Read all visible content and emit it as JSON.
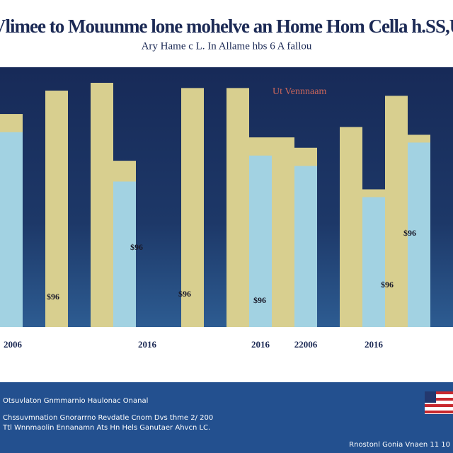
{
  "chart_data": {
    "type": "bar",
    "title": "lldan Vlimee to Mouunme lone mohelve an Home Hom Cella h.SS,U.S,Ca",
    "subtitle": "Ary Hame c L. In Allame hbs 6 A fallou",
    "legend_text": "Ut Vennnaam",
    "categories": [
      "2006",
      null,
      null,
      null,
      null,
      null,
      "2016",
      null,
      null,
      null,
      null,
      "2016",
      null,
      "22006",
      null,
      null,
      "2016",
      null,
      null,
      null
    ],
    "series": [
      {
        "color": "#d8cf8f",
        "values": [
          82,
          null,
          91,
          null,
          94,
          64,
          null,
          null,
          92,
          null,
          92,
          73,
          73,
          69,
          null,
          77,
          53,
          89,
          74,
          null
        ]
      },
      {
        "color": "#a2d2e2",
        "values": [
          75,
          null,
          null,
          null,
          null,
          56,
          null,
          null,
          null,
          null,
          null,
          66,
          null,
          62,
          null,
          null,
          50,
          null,
          71,
          null
        ]
      }
    ],
    "ylim": [
      0,
      100
    ],
    "annotations": [
      "$96",
      "$96",
      "$96",
      "$96",
      "$96",
      "$96"
    ],
    "footer": {
      "lines": [
        "Otsuvlaton  Gnmmarnio  Haulonac  Onanal",
        "Chssuvmnation  Gnorarrno  Revdatle Cnom Dvs thme  2/ 200",
        "Ttl  Wnnmaolin  Ennanamn  Ats  Hn Hels Ganutaer  Ahvcn  LC."
      ],
      "source": "Rnostonl Gonia Vnaen 11 10"
    }
  }
}
